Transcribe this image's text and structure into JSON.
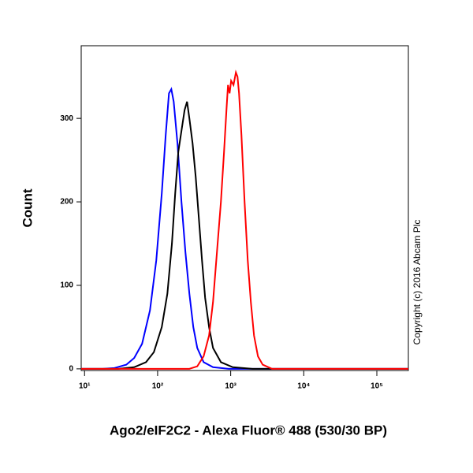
{
  "chart_data": {
    "type": "line",
    "x_label": "Ago2/eIF2C2 - Alexa Fluor® 488 (530/30 BP)",
    "y_label": "Count",
    "annotation": "Copyright (c) 2016 Abcam Plc",
    "xscale": "log",
    "xlim": [
      9,
      270000
    ],
    "ylim": [
      -2,
      387
    ],
    "xticks": [
      {
        "value": 10,
        "label": "10¹"
      },
      {
        "value": 100,
        "label": "10²"
      },
      {
        "value": 1000,
        "label": "10³"
      },
      {
        "value": 10000,
        "label": "10⁴"
      },
      {
        "value": 100000,
        "label": "10⁵"
      }
    ],
    "yticks": [
      0,
      100,
      200,
      300
    ],
    "series": [
      {
        "color": "#0000ff",
        "x": [
          9,
          17.7,
          25.7,
          37.3,
          47.8,
          61.3,
          78.6,
          95.9,
          114,
          129,
          143,
          154,
          166,
          187,
          212,
          240,
          272,
          308,
          349,
          426,
          573,
          942,
          270000
        ],
        "values": [
          0,
          0,
          1,
          5,
          13,
          30,
          70,
          130,
          210,
          280,
          330,
          335,
          320,
          270,
          200,
          140,
          90,
          50,
          25,
          8,
          2,
          0,
          0
        ]
      },
      {
        "color": "#000000",
        "x": [
          9,
          29.1,
          47.8,
          69.4,
          88.9,
          114,
          136,
          157,
          174,
          192,
          212,
          234,
          253,
          272,
          301,
          332,
          367,
          405,
          447,
          506,
          573,
          735,
          1067,
          1986,
          270000
        ],
        "values": [
          0,
          0,
          2,
          8,
          20,
          50,
          90,
          150,
          210,
          260,
          285,
          310,
          320,
          300,
          270,
          230,
          180,
          130,
          85,
          50,
          25,
          8,
          2,
          0,
          0
        ]
      },
      {
        "color": "#ff0000",
        "x": [
          9,
          272,
          349,
          426,
          506,
          573,
          649,
          735,
          811,
          875,
          919,
          966,
          1014,
          1093,
          1178,
          1239,
          1301,
          1403,
          1549,
          1711,
          1888,
          2085,
          2361,
          2741,
          3690,
          270000
        ],
        "values": [
          0,
          0,
          3,
          15,
          40,
          80,
          140,
          200,
          260,
          310,
          340,
          330,
          345,
          340,
          355,
          350,
          330,
          280,
          200,
          130,
          80,
          40,
          15,
          5,
          0,
          0
        ]
      }
    ]
  }
}
